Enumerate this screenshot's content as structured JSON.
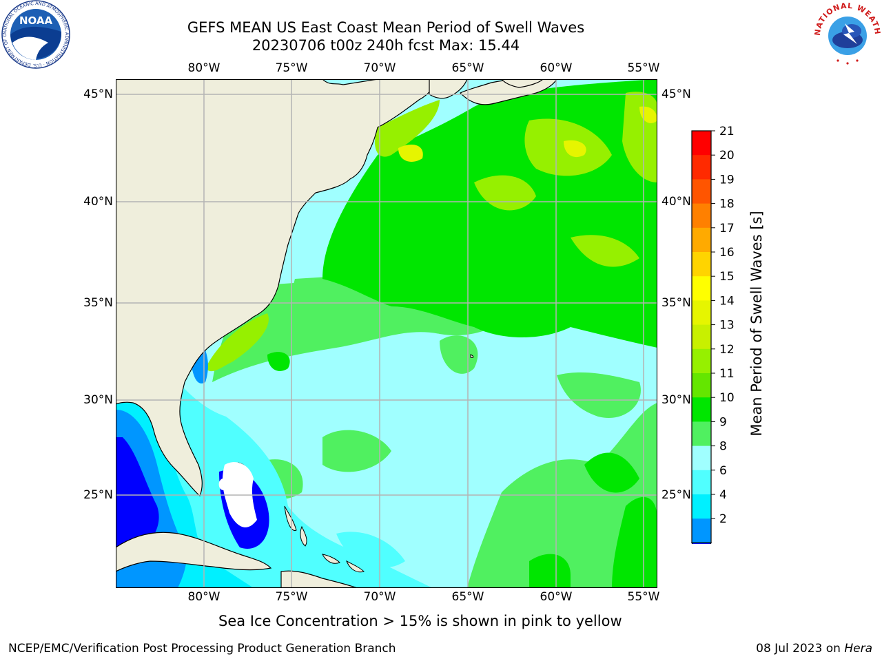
{
  "title_line1": "GEFS MEAN US East Coast Mean Period of Swell Waves",
  "title_line2": "20230706 t00z 240h fcst   Max: 15.44",
  "lon_labels": [
    "80°W",
    "75°W",
    "70°W",
    "65°W",
    "60°W",
    "55°W"
  ],
  "lat_labels": [
    "45°N",
    "40°N",
    "35°N",
    "30°N",
    "25°N"
  ],
  "colorbar": {
    "title": "Mean Period of Swell Waves [s]",
    "ticks": [
      "21",
      "20",
      "19",
      "18",
      "17",
      "16",
      "15",
      "14",
      "13",
      "12",
      "11",
      "10",
      "9",
      "8",
      "6",
      "4",
      "2"
    ],
    "colors": [
      "#ff0000",
      "#ff2a00",
      "#ff5500",
      "#ff8000",
      "#ffaa00",
      "#ffd400",
      "#ffff00",
      "#e6f500",
      "#c8f000",
      "#96f000",
      "#64e600",
      "#00e600",
      "#50f060",
      "#a0ffff",
      "#50ffff",
      "#00f0ff",
      "#0096ff",
      "#0000ff"
    ],
    "value_max": 21
  },
  "map": {
    "land_color": "#efeedc",
    "grid_color": "#b4b4b4",
    "lon_range": [
      -85,
      -54
    ],
    "lat_range": [
      20,
      46
    ]
  },
  "note": "Sea Ice Concentration > 15% is shown in pink to yellow",
  "footer_left": "NCEP/EMC/Verification Post Processing Product Generation Branch",
  "footer_date": "08 Jul 2023 on ",
  "footer_host": "Hera",
  "logos": {
    "noaa_text": "NOAA",
    "noaa_ring": "NATIONAL OCEANIC AND ATMOSPHERIC ADMINISTRATION · U.S. DEPARTMENT OF COMMERCE",
    "nws_ring": "NATIONAL WEATHER SERVICE"
  }
}
